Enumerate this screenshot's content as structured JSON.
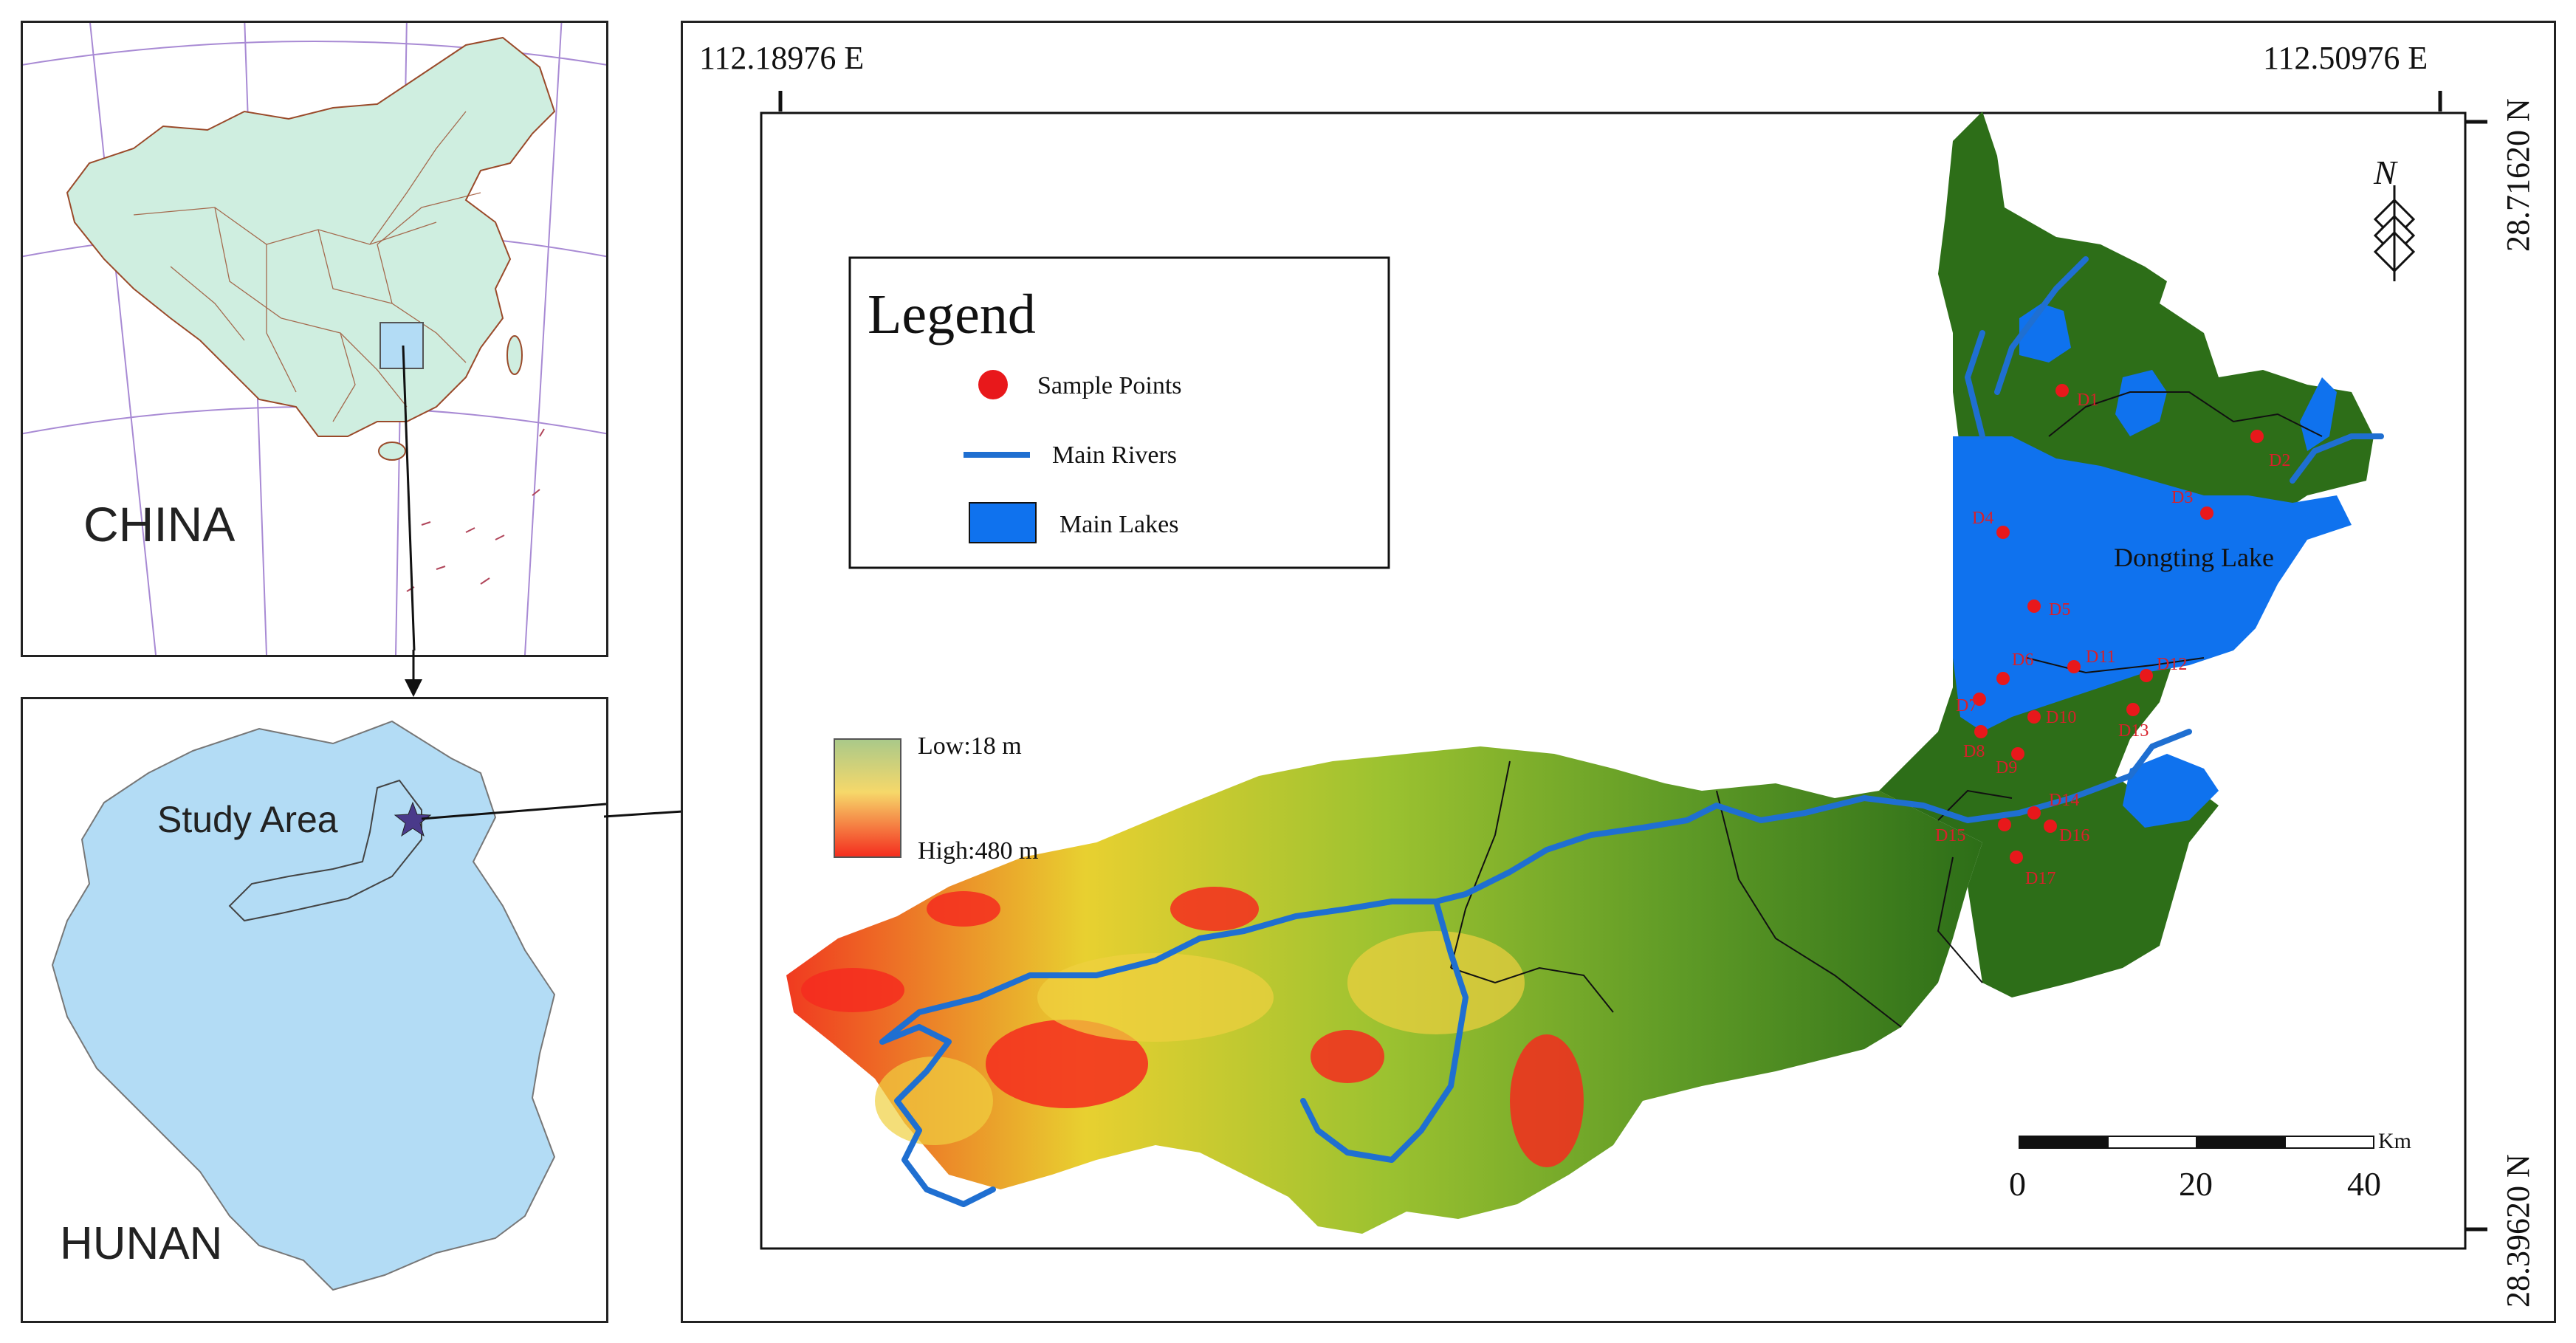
{
  "inset_china": {
    "label": "CHINA"
  },
  "inset_hunan": {
    "label": "HUNAN",
    "study_area_label": "Study Area"
  },
  "coordinates": {
    "top_left_lon": "112.18976 E",
    "top_right_lon": "112.50976 E",
    "top_lat": "28.71620 N",
    "bottom_lat": "28.39620 N"
  },
  "legend": {
    "title": "Legend",
    "items": [
      {
        "label": "Sample Points",
        "symbol": "red-dot",
        "color": "#e8181b"
      },
      {
        "label": "Main Rivers",
        "symbol": "blue-line",
        "color": "#1f6fd1"
      },
      {
        "label": "Main Lakes",
        "symbol": "blue-rect",
        "color": "#0f72ee"
      }
    ]
  },
  "elevation": {
    "low_label": "Low:18 m",
    "high_label": "High:480 m",
    "low_color": "#a9c98a",
    "high_color": "#f42c1e"
  },
  "lake_label": "Dongting Lake",
  "sample_points": [
    "D1",
    "D2",
    "D3",
    "D4",
    "D5",
    "D6",
    "D7",
    "D8",
    "D9",
    "D10",
    "D11",
    "D12",
    "D13",
    "D14",
    "D15",
    "D16",
    "D17"
  ],
  "north_arrow": "N",
  "scale_bar": {
    "unit": "Km",
    "ticks": [
      "0",
      "20",
      "40"
    ]
  },
  "colors": {
    "forest": "#2d6e18",
    "lake": "#0f72ee",
    "river": "#1f6fd1",
    "inset_fill": "#b3dcf5",
    "china_fill": "#cfeee0"
  }
}
